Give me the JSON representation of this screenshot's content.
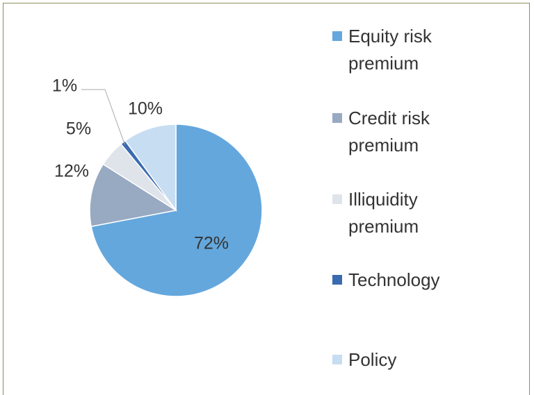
{
  "chart_data": {
    "type": "pie",
    "categories": [
      "Equity risk premium",
      "Credit risk premium",
      "Illiquidity premium",
      "Technology",
      "Policy"
    ],
    "values": [
      72,
      12,
      5,
      1,
      10
    ],
    "value_labels": [
      "72%",
      "12%",
      "5%",
      "1%",
      "10%"
    ],
    "colors": [
      "#64a7dd",
      "#98a9c2",
      "#dfe3ea",
      "#3a6bb0",
      "#c7ddf1"
    ],
    "legend": "right"
  }
}
